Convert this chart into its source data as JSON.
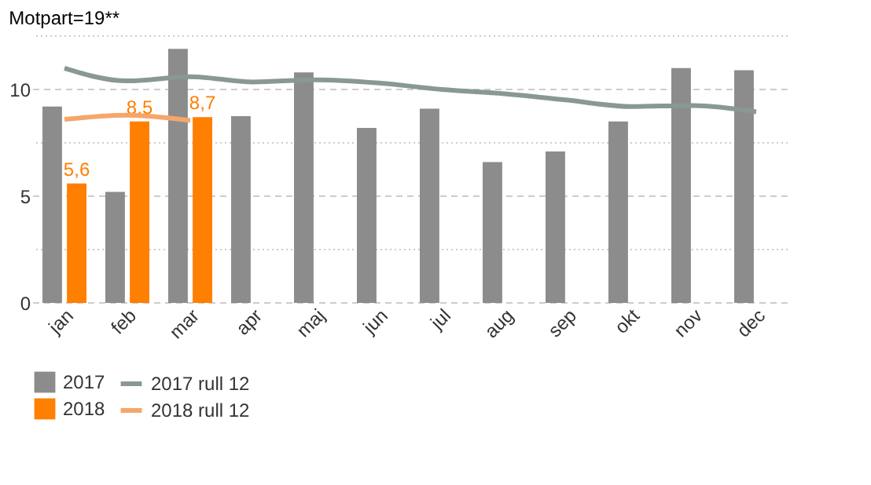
{
  "chart_data": {
    "type": "bar",
    "title": "Motpart=19**",
    "categories": [
      "jan",
      "feb",
      "mar",
      "apr",
      "maj",
      "jun",
      "jul",
      "aug",
      "sep",
      "okt",
      "nov",
      "dec"
    ],
    "series": [
      {
        "name": "2017",
        "color": "#8c8c8c",
        "values": [
          9.2,
          5.2,
          11.9,
          8.75,
          10.8,
          8.2,
          9.1,
          6.6,
          7.1,
          8.5,
          11.0,
          10.9
        ]
      },
      {
        "name": "2018",
        "color": "#ff7f00",
        "values": [
          5.6,
          8.5,
          8.7,
          null,
          null,
          null,
          null,
          null,
          null,
          null,
          null,
          null
        ],
        "value_labels": [
          "5,6",
          "8,5",
          "8,7",
          null,
          null,
          null,
          null,
          null,
          null,
          null,
          null,
          null
        ]
      },
      {
        "name": "2017 rull 12",
        "type": "line",
        "color": "#8a9893",
        "values": [
          11.0,
          10.4,
          10.6,
          10.35,
          10.45,
          10.3,
          10.0,
          9.8,
          9.5,
          9.2,
          9.25,
          8.95
        ]
      },
      {
        "name": "2018 rull 12",
        "type": "line",
        "color": "#f5a66a",
        "values": [
          8.6,
          8.8,
          8.55,
          null,
          null,
          null,
          null,
          null,
          null,
          null,
          null,
          null
        ]
      }
    ],
    "ylim": [
      0,
      12.5
    ],
    "yticks": [
      0,
      {
        "value": 2.5,
        "label": null
      },
      5,
      {
        "value": 7.5,
        "label": null
      },
      10,
      {
        "value": 12.5,
        "label": null
      }
    ],
    "grid": "y",
    "legend": "bottom left"
  }
}
